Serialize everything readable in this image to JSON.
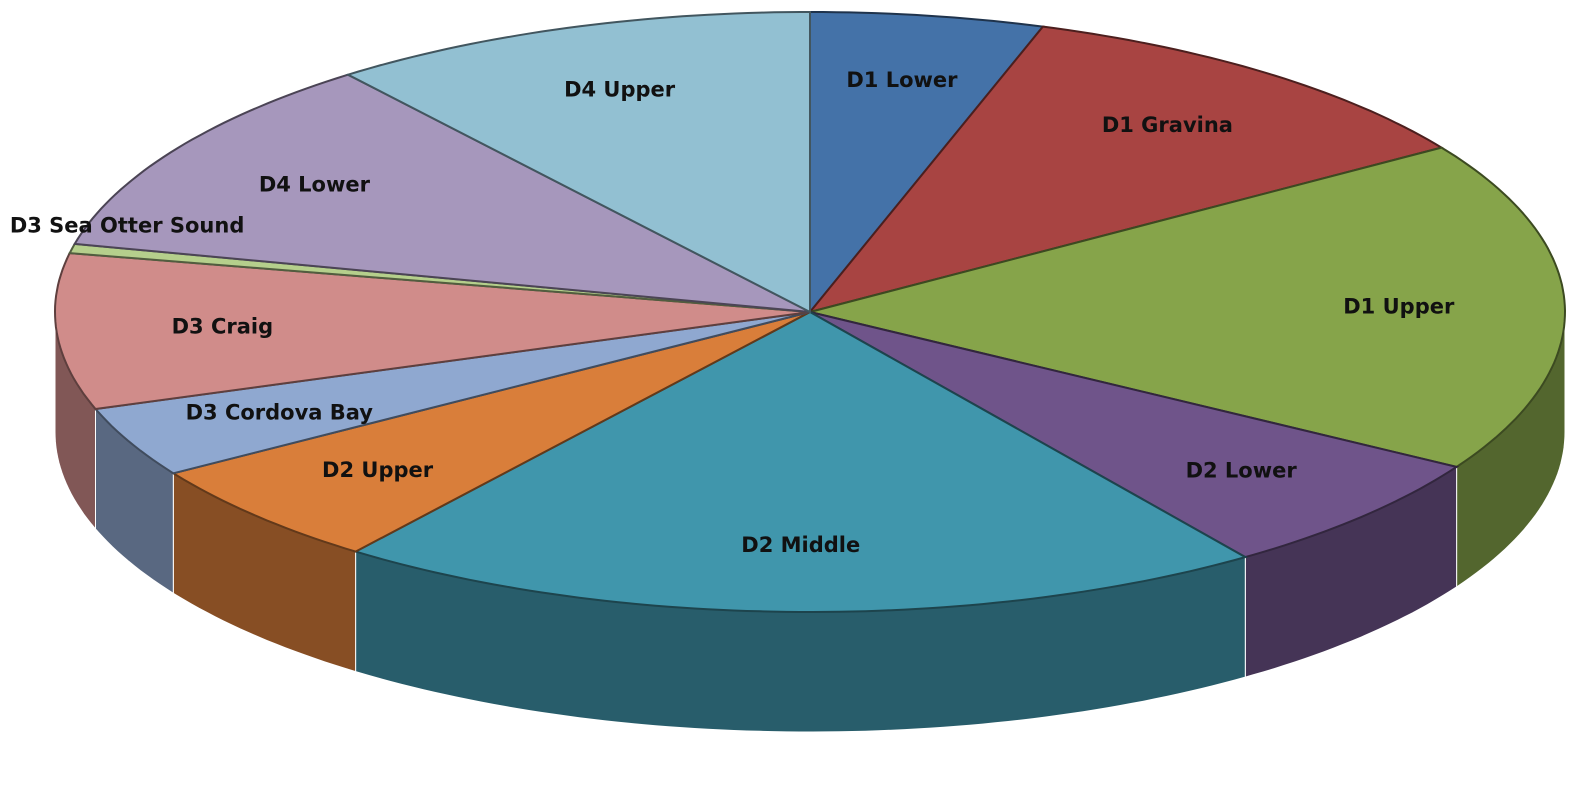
{
  "chart_data": {
    "type": "pie",
    "categories": [
      "D1 Lower",
      "D1 Gravina",
      "D1 Upper",
      "D2 Lower",
      "D2 Middle",
      "D2 Upper",
      "D3 Cordova Bay",
      "D3 Craig",
      "D3 Sea Otter Sound",
      "D4 Lower",
      "D4 Upper"
    ],
    "values": [
      5.0,
      10.8,
      17.9,
      6.6,
      20.1,
      5.7,
      3.8,
      8.4,
      0.5,
      10.9,
      10.5
    ],
    "colors": [
      "#4472a8",
      "#a84442",
      "#86a44a",
      "#6f548a",
      "#4096ac",
      "#d97e3a",
      "#8fa8d0",
      "#d08c8a",
      "#b5cf8c",
      "#a697bc",
      "#92c0d2"
    ]
  }
}
